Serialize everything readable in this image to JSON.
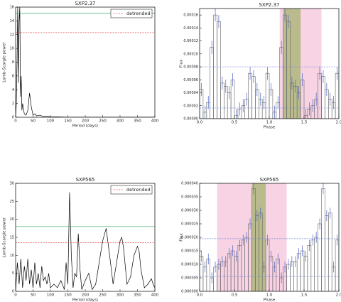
{
  "chart_data": [
    {
      "type": "line",
      "title": "SXP2.37",
      "xlabel": "Period (days)",
      "ylabel": "Lomb-Scargle power",
      "x": [
        0,
        2,
        4,
        6,
        8,
        10,
        12,
        14,
        16,
        18,
        20,
        25,
        30,
        35,
        40,
        45,
        50,
        55,
        60,
        70,
        80,
        90,
        100,
        120,
        150,
        200,
        250,
        300,
        350,
        400
      ],
      "series": [
        {
          "color": "#000000",
          "values": [
            0,
            2,
            8,
            16,
            5,
            14,
            16,
            3,
            6,
            1,
            2,
            0.5,
            0.3,
            1,
            3.5,
            1.5,
            0.3,
            0.5,
            0.2,
            0.3,
            0.1,
            0.15,
            0.05,
            0.05,
            0.02,
            0.02,
            0.01,
            0.01,
            0.01,
            0.01
          ]
        }
      ],
      "lines": [
        {
          "value": 15.1,
          "color": "#3fae6a"
        },
        {
          "value": 12.3,
          "color": "#e05050",
          "dash": true,
          "name": "detrended"
        }
      ],
      "legend": "upper right",
      "xlim": [
        0,
        400
      ],
      "xticks": [
        0,
        50,
        100,
        150,
        200,
        250,
        300,
        350,
        400
      ],
      "ylim": [
        0,
        16
      ],
      "yticks": [
        0,
        2,
        4,
        6,
        8,
        10,
        12,
        14,
        16
      ]
    },
    {
      "type": "histogram",
      "title": "SXP2.37",
      "xlabel": "Phase",
      "ylabel": "Flux",
      "bins": [
        0,
        0.05,
        0.1,
        0.15,
        0.2,
        0.25,
        0.3,
        0.35,
        0.4,
        0.45,
        0.5,
        0.55,
        0.6,
        0.65,
        0.7,
        0.75,
        0.8,
        0.85,
        0.9,
        0.95,
        1,
        1.05,
        1.1,
        1.15,
        1.2,
        1.25,
        1.3,
        1.35,
        1.4,
        1.45,
        1.5,
        1.55,
        1.6,
        1.65,
        1.7,
        1.75,
        1.8,
        1.85,
        1.9,
        1.95,
        2
      ],
      "values": [
        4.5e-05,
        1e-05,
        2.5e-05,
        0.00011,
        0.00016,
        0.00015,
        5.5e-05,
        5e-05,
        4e-05,
        6e-05,
        5e-06,
        1.5e-05,
        2e-05,
        3e-05,
        7e-05,
        6.5e-05,
        4.5e-05,
        3e-05,
        2.5e-05,
        7e-05,
        4.5e-05,
        1e-05,
        2.5e-05,
        0.00011,
        0.00016,
        0.00015,
        5.5e-05,
        5e-05,
        4e-05,
        6e-05,
        5e-06,
        1.5e-05,
        2e-05,
        3e-05,
        7e-05,
        6.5e-05,
        4.5e-05,
        3e-05,
        2.5e-05,
        7e-05
      ],
      "errors": [
        1e-05,
        1e-05,
        1e-05,
        1e-05,
        1e-05,
        1e-05,
        1e-05,
        1e-05,
        1e-05,
        1e-05,
        1e-05,
        1e-05,
        1e-05,
        1e-05,
        1e-05,
        1e-05,
        1e-05,
        1e-05,
        1e-05,
        1e-05,
        1e-05,
        1e-05,
        1e-05,
        1e-05,
        1e-05,
        1e-05,
        1e-05,
        1e-05,
        1e-05,
        1e-05,
        1e-05,
        1e-05,
        1e-05,
        1e-05,
        1e-05,
        1e-05,
        1e-05,
        1e-05,
        1e-05,
        1e-05
      ],
      "color": "#666666",
      "error_color": "#4d63c4",
      "spans": [
        {
          "range": [
            1.15,
            1.75
          ],
          "color": "#f7d3e4"
        },
        {
          "range": [
            1.2,
            1.45
          ],
          "color": "#b9bb8c"
        }
      ],
      "lines": [
        {
          "value": 8e-05,
          "color": "#7788dd",
          "dash": true
        },
        {
          "value": 1.65e-05,
          "color": "#7788dd",
          "dash": true
        }
      ],
      "xlim": [
        0,
        2
      ],
      "xticks": [
        {
          "value": 0,
          "label": "0.0"
        },
        0.5,
        {
          "value": 1,
          "label": "1.0"
        },
        1.5,
        {
          "value": 2,
          "label": "2.0"
        }
      ],
      "ylim": [
        0,
        0.00017
      ],
      "yticks": [
        {
          "value": 0,
          "label": "0.00000"
        },
        2e-05,
        4e-05,
        6e-05,
        8e-05,
        {
          "value": 0.0001,
          "label": "0.00010"
        },
        0.00012,
        0.00014,
        0.00016
      ]
    },
    {
      "type": "line",
      "title": "SXP565",
      "xlabel": "Period (days)",
      "ylabel": "Lomb-Scargle power",
      "x": [
        0,
        5,
        10,
        15,
        20,
        25,
        30,
        35,
        40,
        45,
        50,
        55,
        60,
        65,
        70,
        75,
        80,
        85,
        90,
        95,
        100,
        110,
        120,
        130,
        140,
        145,
        150,
        155,
        160,
        165,
        170,
        175,
        180,
        185,
        190,
        200,
        210,
        220,
        230,
        240,
        250,
        260,
        270,
        280,
        290,
        300,
        305,
        310,
        320,
        330,
        340,
        350,
        355,
        360,
        370,
        380,
        390,
        395,
        400
      ],
      "series": [
        {
          "color": "#000000",
          "values": [
            0,
            8,
            2,
            9,
            1,
            7,
            3,
            9,
            2,
            6,
            1,
            8,
            2,
            5,
            1,
            7,
            3,
            4,
            2,
            5,
            1,
            2,
            1,
            3,
            0.5,
            8,
            2,
            27.5,
            10,
            1,
            5,
            4,
            16,
            6,
            0.5,
            3,
            5,
            0.5,
            2,
            8,
            14,
            17.5,
            10,
            2,
            8,
            14,
            15,
            12,
            2,
            4,
            10,
            12.5,
            11,
            6,
            1,
            2,
            3.5,
            2,
            1
          ]
        }
      ],
      "lines": [
        {
          "value": 18,
          "color": "#3fae6a"
        },
        {
          "value": 13.5,
          "color": "#e05050",
          "dash": true,
          "name": "detrended"
        }
      ],
      "legend": "upper right",
      "xlim": [
        0,
        400
      ],
      "xticks": [
        0,
        50,
        100,
        150,
        200,
        250,
        300,
        350,
        400
      ],
      "ylim": [
        0,
        30
      ],
      "yticks": [
        0,
        5,
        10,
        15,
        20,
        25,
        30
      ]
    },
    {
      "type": "histogram",
      "title": "SXP565",
      "xlabel": "Phase",
      "ylabel": "Flux",
      "bins": [
        0,
        0.05,
        0.1,
        0.15,
        0.2,
        0.25,
        0.3,
        0.35,
        0.4,
        0.45,
        0.5,
        0.55,
        0.6,
        0.65,
        0.7,
        0.75,
        0.8,
        0.85,
        0.9,
        0.95,
        1,
        1.05,
        1.1,
        1.15,
        1.2,
        1.25,
        1.3,
        1.35,
        1.4,
        1.45,
        1.5,
        1.55,
        1.6,
        1.65,
        1.7,
        1.75,
        1.8,
        1.85,
        1.9,
        1.95,
        2
      ],
      "values": [
        1.3e-05,
        9e-06,
        1.2e-05,
        5e-06,
        9e-06,
        1e-05,
        1.1e-05,
        1.1e-05,
        1.4e-05,
        1.5e-05,
        1.3e-05,
        1.7e-05,
        1.9e-05,
        2e-05,
        2.5e-05,
        3.8e-05,
        2.8e-05,
        2.9e-05,
        9e-06,
        1.9e-05,
        1.3e-05,
        9e-06,
        1.2e-05,
        5e-06,
        9e-06,
        1e-05,
        1.1e-05,
        1.1e-05,
        1.4e-05,
        1.5e-05,
        1.3e-05,
        1.7e-05,
        1.9e-05,
        2e-05,
        2.5e-05,
        3.8e-05,
        2.8e-05,
        2.9e-05,
        9e-06,
        1.9e-05
      ],
      "errors": [
        2e-06,
        2e-06,
        2e-06,
        2e-06,
        2e-06,
        2e-06,
        2e-06,
        2e-06,
        2e-06,
        2e-06,
        2e-06,
        2e-06,
        2e-06,
        2e-06,
        2e-06,
        2e-06,
        2e-06,
        2e-06,
        2e-06,
        2e-06,
        2e-06,
        2e-06,
        2e-06,
        2e-06,
        2e-06,
        2e-06,
        2e-06,
        2e-06,
        2e-06,
        2e-06,
        2e-06,
        2e-06,
        2e-06,
        2e-06,
        2e-06,
        2e-06,
        2e-06,
        2e-06,
        2e-06,
        2e-06
      ],
      "color": "#666666",
      "error_color": "#4d63c4",
      "spans": [
        {
          "range": [
            0.25,
            1.25
          ],
          "color": "#f7d3e4"
        },
        {
          "range": [
            0.75,
            0.95
          ],
          "color": "#b9bb8c"
        }
      ],
      "lines": [
        {
          "value": 1.95e-05,
          "color": "#7788dd",
          "dash": true
        },
        {
          "value": 5.5e-06,
          "color": "#7788dd",
          "dash": true
        }
      ],
      "xlim": [
        0,
        2
      ],
      "xticks": [
        {
          "value": 0,
          "label": "0.0"
        },
        0.5,
        {
          "value": 1,
          "label": "1.0"
        },
        1.5,
        {
          "value": 2,
          "label": "2.0"
        }
      ],
      "ylim": [
        0,
        4e-05
      ],
      "yticks": [
        {
          "value": 0,
          "label": "0.000000"
        },
        5e-06,
        {
          "value": 1e-05,
          "label": "0.000010"
        },
        1.5e-05,
        {
          "value": 2e-05,
          "label": "0.000020"
        },
        2.5e-05,
        {
          "value": 3e-05,
          "label": "0.000030"
        },
        3.5e-05,
        {
          "value": 4e-05,
          "label": "0.000040"
        }
      ]
    }
  ]
}
